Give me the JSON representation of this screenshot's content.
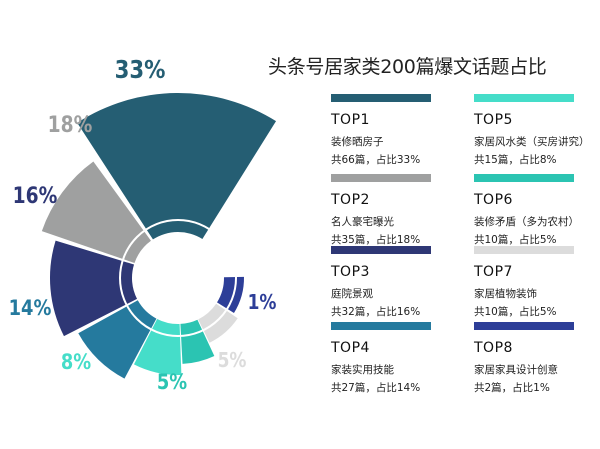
{
  "chart_data": {
    "type": "pie",
    "title": "头条号居家类200篇爆文话题占比",
    "slices": [
      {
        "label": "33%",
        "value": 33,
        "color": "#255E73"
      },
      {
        "label": "18%",
        "value": 18,
        "color": "#9FA0A0"
      },
      {
        "label": "16%",
        "value": 16,
        "color": "#2E3775"
      },
      {
        "label": "14%",
        "value": 14,
        "color": "#257A9E"
      },
      {
        "label": "8%",
        "value": 8,
        "color": "#45DDC9"
      },
      {
        "label": "5%",
        "value": 5,
        "color": "#2BC4B2"
      },
      {
        "label": "5%",
        "value": 5,
        "color": "#DCDCDC"
      },
      {
        "label": "1%",
        "value": 1,
        "color": "#2D3E98"
      }
    ],
    "legend": [
      {
        "rank": "TOP1",
        "topic": "装修晒房子",
        "stat": "共66篇，占比33%",
        "color": "#255E73"
      },
      {
        "rank": "TOP2",
        "topic": "名人豪宅曝光",
        "stat": "共35篇，占比18%",
        "color": "#9FA0A0"
      },
      {
        "rank": "TOP3",
        "topic": "庭院景观",
        "stat": "共32篇，占比16%",
        "color": "#2E3775"
      },
      {
        "rank": "TOP4",
        "topic": "家装实用技能",
        "stat": "共27篇，占比14%",
        "color": "#257A9E"
      },
      {
        "rank": "TOP5",
        "topic": "家居风水类（买房讲究）",
        "stat": "共15篇，占比8%",
        "color": "#45DDC9"
      },
      {
        "rank": "TOP6",
        "topic": "装修矛盾（多为农村）",
        "stat": "共10篇，占比5%",
        "color": "#2BC4B2"
      },
      {
        "rank": "TOP7",
        "topic": "家居植物装饰",
        "stat": "共10篇，占比5%",
        "color": "#DCDCDC"
      },
      {
        "rank": "TOP8",
        "topic": "家居家具设计创意",
        "stat": "共2篇，占比1%",
        "color": "#2D3E98"
      }
    ]
  }
}
